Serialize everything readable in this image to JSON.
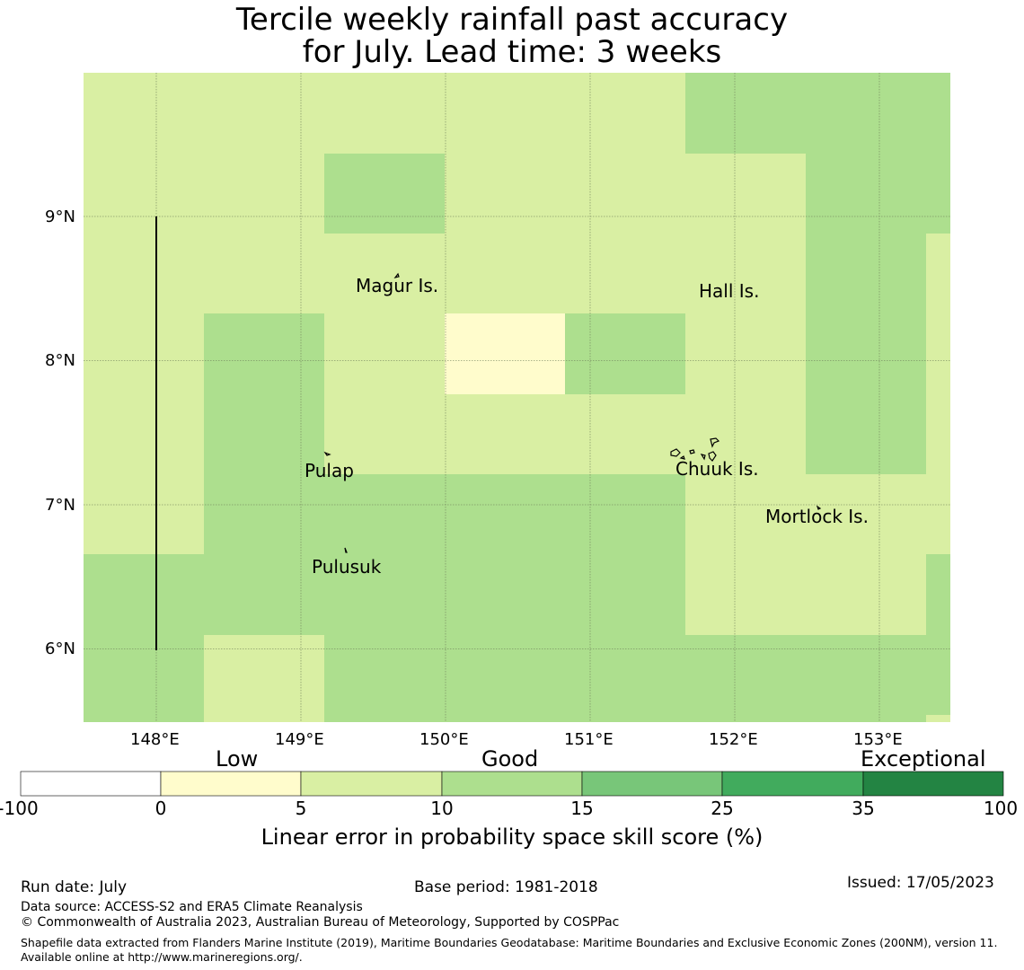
{
  "title": {
    "line1": "Tercile weekly rainfall past accuracy",
    "line2": "for July. Lead time: 3 weeks"
  },
  "map": {
    "lon_range": [
      147.5,
      153.5
    ],
    "lat_range": [
      5.5,
      10.0
    ],
    "lon_ticks": [
      "148°E",
      "149°E",
      "150°E",
      "151°E",
      "152°E",
      "153°E"
    ],
    "lat_ticks": [
      "9°N",
      "8°N",
      "7°N",
      "6°N"
    ],
    "grid": true,
    "colors": {
      "lt0_5": "#fffccc",
      "c5_10": "#d9efa3",
      "c10_15": "#addf8e",
      "c15_25": "#78c679",
      "c25_35": "#41ab5d",
      "c35_100": "#238443"
    },
    "places": [
      {
        "name": "Magur Is.",
        "lon": 149.68,
        "lat": 8.52
      },
      {
        "name": "Hall Is.",
        "lon": 151.97,
        "lat": 8.48
      },
      {
        "name": "Pulap",
        "lon": 149.21,
        "lat": 7.24
      },
      {
        "name": "Chuuk Is.",
        "lon": 151.9,
        "lat": 7.25
      },
      {
        "name": "Mortlock Is.",
        "lon": 152.6,
        "lat": 6.92
      },
      {
        "name": "Pulusuk",
        "lon": 149.33,
        "lat": 6.58
      }
    ]
  },
  "colorbar": {
    "category_labels": [
      "Low",
      "Good",
      "Exceptional"
    ],
    "ticks": [
      "-100",
      "0",
      "5",
      "10",
      "15",
      "25",
      "35",
      "100"
    ],
    "colors": [
      "#ffffff",
      "#fffccc",
      "#d9efa3",
      "#addf8e",
      "#78c679",
      "#41ab5d",
      "#238443"
    ],
    "label": "Linear error in probability space skill score (%)"
  },
  "footer": {
    "run_date": "Run date: July",
    "base_period": "Base period: 1981-2018",
    "issued": "Issued: 17/05/2023",
    "data_source": "Data source: ACCESS-S2 and ERA5 Climate Reanalysis",
    "copyright": "© Commonwealth of Australia 2023, Australian Bureau of Meteorology, Supported by COSPPac",
    "shapefile": "Shapefile data extracted from Flanders Marine Institute (2019), Maritime Boundaries Geodatabase: Maritime Boundaries and Exclusive Economic Zones (200NM), version 11. Available online at http://www.marineregions.org/."
  }
}
